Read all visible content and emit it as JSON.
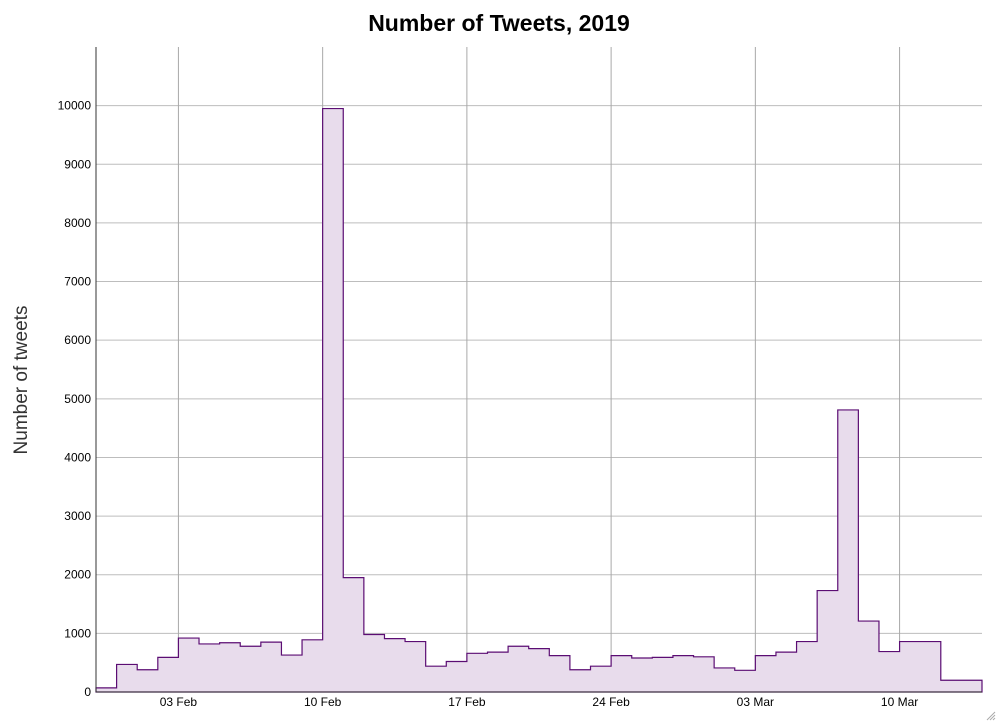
{
  "chart_data": {
    "type": "area",
    "title": "Number of Tweets, 2019",
    "xlabel": "",
    "ylabel": "Number of tweets",
    "x_start": "2019-01-30",
    "bin": "1 day",
    "xlim": [
      "2019-01-30",
      "2019-03-14"
    ],
    "ylim": [
      0,
      11000
    ],
    "yticks": [
      0,
      1000,
      2000,
      3000,
      4000,
      5000,
      6000,
      7000,
      8000,
      9000,
      10000
    ],
    "xticks": [
      "03 Feb",
      "10 Feb",
      "17 Feb",
      "24 Feb",
      "03 Mar",
      "10 Mar"
    ],
    "grid": true,
    "color": "#5b0d73",
    "fill_color": "#e8dcec",
    "series": [
      {
        "x": [
          "2019-01-30",
          "2019-01-31",
          "2019-02-01",
          "2019-02-02",
          "2019-02-03",
          "2019-02-04",
          "2019-02-05",
          "2019-02-06",
          "2019-02-07",
          "2019-02-08",
          "2019-02-09",
          "2019-02-10",
          "2019-02-11",
          "2019-02-12",
          "2019-02-13",
          "2019-02-14",
          "2019-02-15",
          "2019-02-16",
          "2019-02-17",
          "2019-02-18",
          "2019-02-19",
          "2019-02-20",
          "2019-02-21",
          "2019-02-22",
          "2019-02-23",
          "2019-02-24",
          "2019-02-25",
          "2019-02-26",
          "2019-02-27",
          "2019-02-28",
          "2019-03-01",
          "2019-03-02",
          "2019-03-03",
          "2019-03-04",
          "2019-03-05",
          "2019-03-06",
          "2019-03-07",
          "2019-03-08",
          "2019-03-09",
          "2019-03-10",
          "2019-03-11",
          "2019-03-12",
          "2019-03-13"
        ],
        "values": [
          70,
          470,
          380,
          590,
          920,
          820,
          840,
          780,
          850,
          630,
          890,
          9950,
          1950,
          980,
          910,
          860,
          440,
          520,
          660,
          680,
          780,
          740,
          620,
          380,
          440,
          620,
          580,
          590,
          620,
          600,
          410,
          370,
          620,
          680,
          860,
          1730,
          4810,
          1210,
          690,
          860,
          860,
          200,
          200
        ]
      }
    ]
  }
}
